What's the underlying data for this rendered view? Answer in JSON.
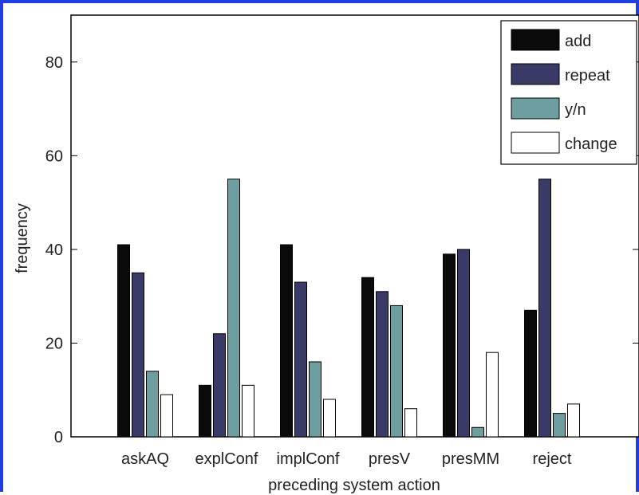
{
  "chart_data": {
    "type": "bar",
    "title": "",
    "xlabel": "preceding system action",
    "ylabel": "frequency",
    "categories": [
      "askAQ",
      "explConf",
      "implConf",
      "presV",
      "presMM",
      "reject"
    ],
    "series": [
      {
        "name": "add",
        "color": "#0a0a0a",
        "values": [
          41,
          11,
          41,
          34,
          39,
          27
        ]
      },
      {
        "name": "repeat",
        "color": "#3a3a66",
        "values": [
          35,
          22,
          33,
          31,
          40,
          55
        ]
      },
      {
        "name": "y/n",
        "color": "#6f9ea0",
        "values": [
          14,
          55,
          16,
          28,
          2,
          5
        ]
      },
      {
        "name": "change",
        "color": "#ffffff",
        "values": [
          9,
          11,
          8,
          6,
          18,
          7
        ]
      }
    ],
    "ylim": [
      0,
      90
    ],
    "yticks": [
      0,
      20,
      40,
      60,
      80
    ],
    "legend_position": "top-right",
    "grid": false
  }
}
